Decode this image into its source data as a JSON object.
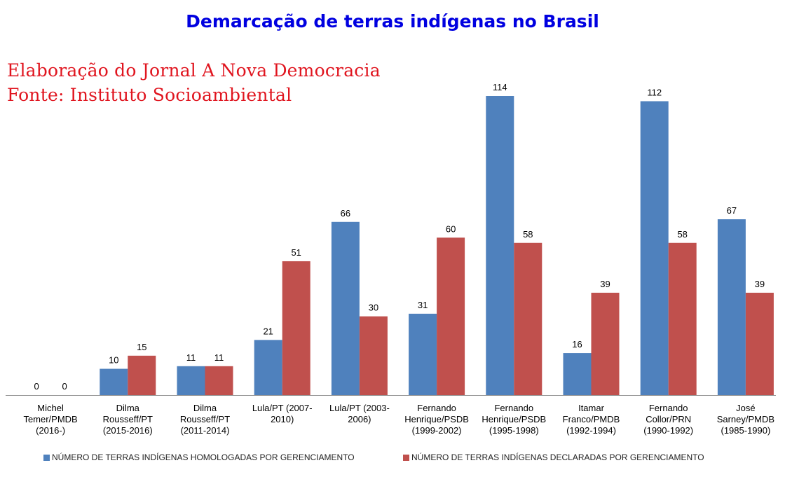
{
  "chart_data": {
    "type": "bar",
    "title": "Demarcação de terras indígenas no Brasil",
    "subtitle": [
      "Elaboração do Jornal A Nova Democracia",
      "Fonte: Instituto Socioambiental"
    ],
    "categories": [
      [
        "Michel",
        "Temer/PMDB",
        "(2016-)"
      ],
      [
        "Dilma",
        "Rousseff/PT",
        "(2015-2016)"
      ],
      [
        "Dilma",
        "Rousseff/PT",
        "(2011-2014)"
      ],
      [
        "Lula/PT (2007-",
        "2010)"
      ],
      [
        "Lula/PT (2003-",
        "2006)"
      ],
      [
        "Fernando",
        "Henrique/PSDB",
        "(1999-2002)"
      ],
      [
        "Fernando",
        "Henrique/PSDB",
        "(1995-1998)"
      ],
      [
        "Itamar",
        "Franco/PMDB",
        "(1992-1994)"
      ],
      [
        "Fernando",
        "Collor/PRN",
        "(1990-1992)"
      ],
      [
        "José",
        "Sarney/PMDB",
        "(1985-1990)"
      ]
    ],
    "series": [
      {
        "name": "NÚMERO DE TERRAS INDÍGENAS HOMOLOGADAS POR GERENCIAMENTO",
        "color": "#4f81bd",
        "values": [
          0,
          10,
          11,
          21,
          66,
          31,
          114,
          16,
          112,
          67
        ]
      },
      {
        "name": "NÚMERO DE TERRAS INDÍGENAS DECLARADAS POR GERENCIAMENTO",
        "color": "#c0504d",
        "values": [
          0,
          15,
          11,
          51,
          30,
          60,
          58,
          39,
          58,
          39
        ]
      }
    ],
    "ylim": [
      0,
      114
    ],
    "grid": false,
    "legend": "bottom",
    "xlabel": "",
    "ylabel": ""
  }
}
